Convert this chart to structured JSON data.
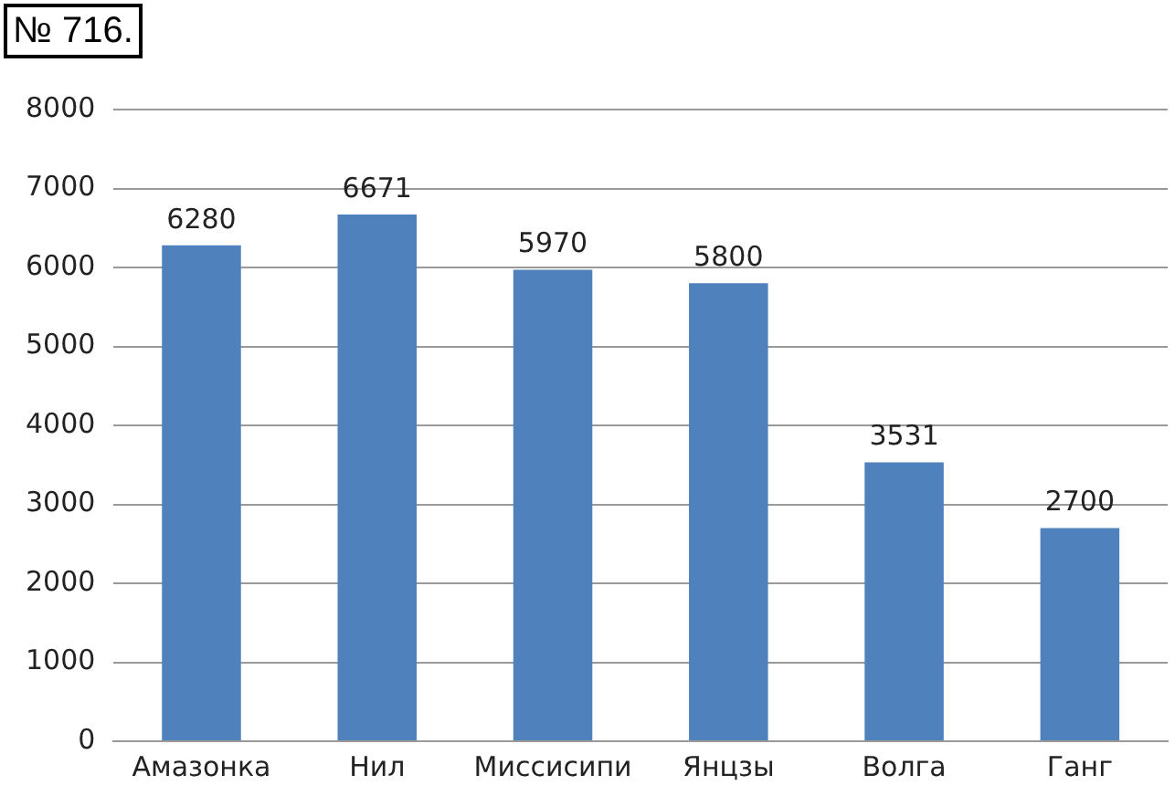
{
  "chart_data": {
    "type": "bar",
    "title": "№ 716.",
    "categories": [
      "Амазонка",
      "Нил",
      "Миссисипи",
      "Янцзы",
      "Волга",
      "Ганг"
    ],
    "values": [
      6280,
      6671,
      5970,
      5800,
      3531,
      2700
    ],
    "color": "#4f81bd",
    "ylim": [
      0,
      8000
    ],
    "yticks": [
      0,
      1000,
      2000,
      3000,
      4000,
      5000,
      6000,
      7000,
      8000
    ],
    "grid": "y",
    "data_labels": true,
    "legend": false
  }
}
